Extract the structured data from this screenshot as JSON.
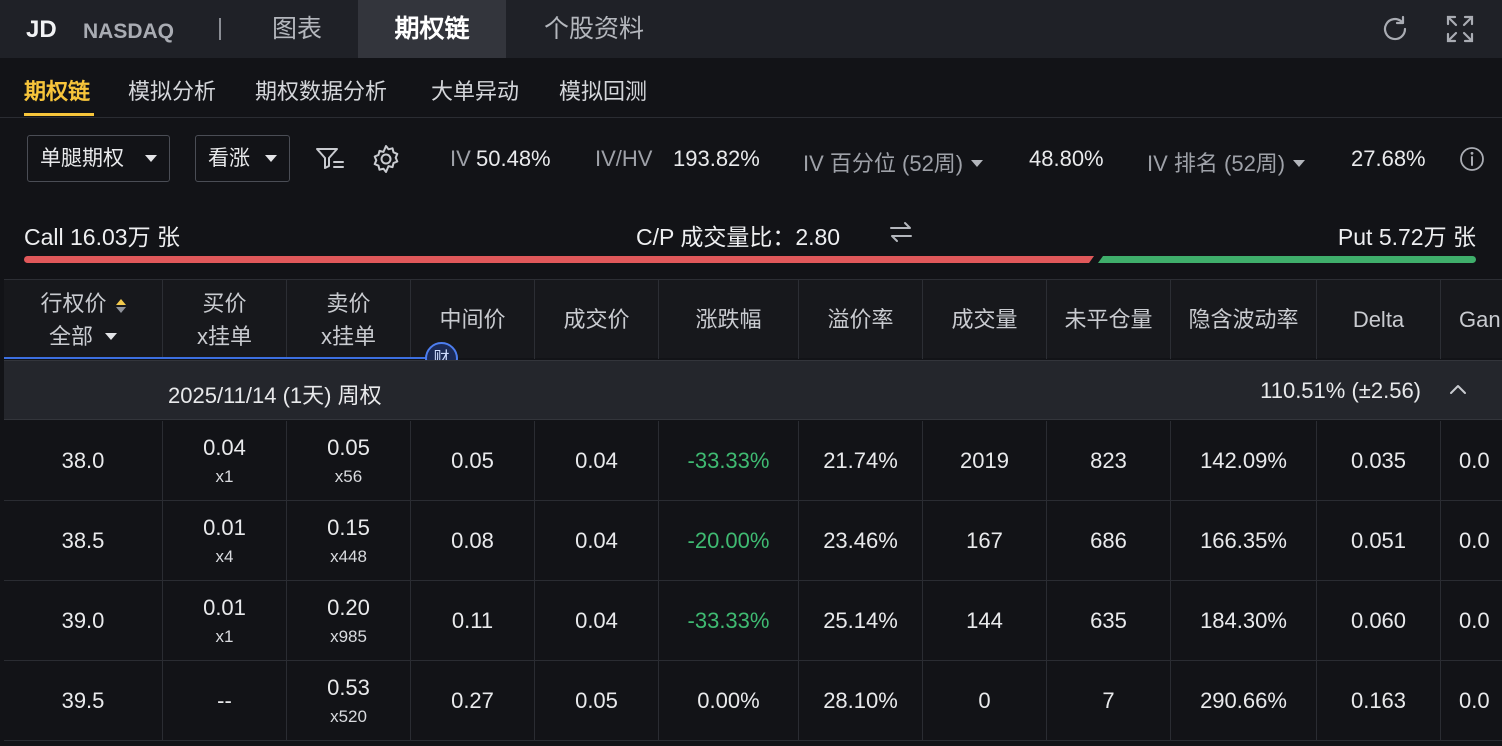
{
  "header": {
    "ticker": "JD",
    "exchange": "NASDAQ",
    "tabs": [
      {
        "label": "图表"
      },
      {
        "label": "期权链"
      },
      {
        "label": "个股资料"
      }
    ]
  },
  "subnav": {
    "tabs": [
      {
        "label": "期权链"
      },
      {
        "label": "模拟分析"
      },
      {
        "label": "期权数据分析"
      },
      {
        "label": "大单异动"
      },
      {
        "label": "模拟回测"
      }
    ]
  },
  "filters": {
    "leg_type": "单腿期权",
    "direction": "看涨"
  },
  "stats": {
    "iv_label": "IV",
    "iv_value": "50.48%",
    "ivhv_label": "IV/HV",
    "ivhv_value": "193.82%",
    "iv_pct_label": "IV 百分位 (52周)",
    "iv_pct_value": "48.80%",
    "iv_rank_label": "IV 排名 (52周)",
    "iv_rank_value": "27.68%"
  },
  "volume": {
    "call": "Call 16.03万 张",
    "ratio": "C/P 成交量比：2.80",
    "put": "Put 5.72万 张",
    "call_share": 0.737
  },
  "table": {
    "headers": {
      "strike": "行权价",
      "strike_filter": "全部",
      "bid_1": "买价",
      "bid_2": "x挂单",
      "ask_1": "卖价",
      "ask_2": "x挂单",
      "mid": "中间价",
      "last": "成交价",
      "change": "涨跌幅",
      "premium": "溢价率",
      "volume": "成交量",
      "oi": "未平仓量",
      "iv": "隐含波动率",
      "delta": "Delta",
      "gamma": "Gan"
    },
    "fin_badge": "财",
    "expiry": {
      "date": "2025/11/14 (1天) 周权",
      "iv": "110.51%  (±2.56)"
    },
    "rows": [
      {
        "strike": "38.0",
        "bid": "0.04",
        "bid_size": "x1",
        "ask": "0.05",
        "ask_size": "x56",
        "mid": "0.05",
        "last": "0.04",
        "change": "-33.33%",
        "premium": "21.74%",
        "volume": "2019",
        "oi": "823",
        "iv": "142.09%",
        "delta": "0.035",
        "gamma": "0.0"
      },
      {
        "strike": "38.5",
        "bid": "0.01",
        "bid_size": "x4",
        "ask": "0.15",
        "ask_size": "x448",
        "mid": "0.08",
        "last": "0.04",
        "change": "-20.00%",
        "premium": "23.46%",
        "volume": "167",
        "oi": "686",
        "iv": "166.35%",
        "delta": "0.051",
        "gamma": "0.0"
      },
      {
        "strike": "39.0",
        "bid": "0.01",
        "bid_size": "x1",
        "ask": "0.20",
        "ask_size": "x985",
        "mid": "0.11",
        "last": "0.04",
        "change": "-33.33%",
        "premium": "25.14%",
        "volume": "144",
        "oi": "635",
        "iv": "184.30%",
        "delta": "0.060",
        "gamma": "0.0"
      },
      {
        "strike": "39.5",
        "bid": "--",
        "bid_size": "",
        "ask": "0.53",
        "ask_size": "x520",
        "mid": "0.27",
        "last": "0.05",
        "change": "0.00%",
        "premium": "28.10%",
        "volume": "0",
        "oi": "7",
        "iv": "290.66%",
        "delta": "0.163",
        "gamma": "0.0"
      }
    ]
  },
  "colors": {
    "accent": "#f7c53b",
    "call_bar": "#e0585a",
    "put_bar": "#3fae6b",
    "negative": "#3fba72"
  }
}
